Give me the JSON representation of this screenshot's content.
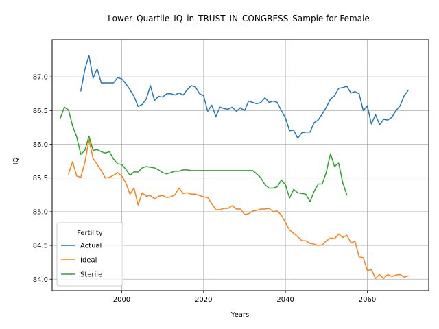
{
  "chart_data": {
    "type": "line",
    "title": "Lower_Quartile_IQ_in_TRUST_IN_CONGRESS_Sample for Female",
    "xlabel": "Years",
    "ylabel": "IQ",
    "xlim": [
      1983,
      2075
    ],
    "ylim": [
      83.83,
      87.55
    ],
    "xticks": [
      2000,
      2020,
      2040,
      2060
    ],
    "yticks": [
      84.0,
      84.5,
      85.0,
      85.5,
      86.0,
      86.5,
      87.0
    ],
    "ytick_labels": [
      "84.0",
      "84.5",
      "85.0",
      "85.5",
      "86.0",
      "86.5",
      "87.0"
    ],
    "grid": true,
    "legend": {
      "title": "Fertility",
      "position": "lower-left"
    },
    "series": [
      {
        "name": "Actual",
        "color": "#1f77b4",
        "x": [
          1990,
          1991,
          1992,
          1993,
          1994,
          1995,
          1996,
          1997,
          1998,
          1999,
          2000,
          2001,
          2002,
          2003,
          2004,
          2005,
          2006,
          2007,
          2008,
          2009,
          2010,
          2011,
          2012,
          2013,
          2014,
          2015,
          2016,
          2017,
          2018,
          2019,
          2020,
          2021,
          2022,
          2023,
          2024,
          2025,
          2026,
          2027,
          2028,
          2029,
          2030,
          2031,
          2032,
          2033,
          2034,
          2035,
          2036,
          2037,
          2038,
          2039,
          2040,
          2041,
          2042,
          2043,
          2044,
          2045,
          2046,
          2047,
          2048,
          2049,
          2050,
          2051,
          2052,
          2053,
          2054,
          2055,
          2056,
          2057,
          2058,
          2059,
          2060,
          2061,
          2062,
          2063,
          2064,
          2065,
          2066,
          2067,
          2068,
          2069,
          2070
        ],
        "y": [
          86.79,
          87.11,
          87.32,
          86.98,
          87.12,
          86.91,
          86.91,
          86.91,
          86.91,
          86.99,
          86.97,
          86.9,
          86.81,
          86.71,
          86.56,
          86.59,
          86.67,
          86.87,
          86.65,
          86.71,
          86.7,
          86.75,
          86.75,
          86.73,
          86.76,
          86.73,
          86.81,
          86.87,
          86.85,
          86.75,
          86.72,
          86.49,
          86.58,
          86.41,
          86.55,
          86.53,
          86.52,
          86.55,
          86.49,
          86.54,
          86.5,
          86.64,
          86.62,
          86.6,
          86.62,
          86.69,
          86.62,
          86.64,
          86.62,
          86.5,
          86.39,
          86.2,
          86.21,
          86.09,
          86.17,
          86.18,
          86.18,
          86.32,
          86.36,
          86.45,
          86.55,
          86.67,
          86.72,
          86.83,
          86.84,
          86.86,
          86.76,
          86.78,
          86.75,
          86.5,
          86.57,
          86.3,
          86.44,
          86.29,
          86.37,
          86.36,
          86.4,
          86.5,
          86.57,
          86.72,
          86.8
        ]
      },
      {
        "name": "Ideal",
        "color": "#ff7f0e",
        "x": [
          1987,
          1988,
          1989,
          1990,
          1991,
          1992,
          1993,
          1994,
          1995,
          1996,
          1997,
          1998,
          1999,
          2000,
          2001,
          2002,
          2003,
          2004,
          2005,
          2006,
          2007,
          2008,
          2009,
          2010,
          2011,
          2012,
          2013,
          2014,
          2015,
          2016,
          2017,
          2018,
          2019,
          2020,
          2021,
          2022,
          2023,
          2024,
          2025,
          2026,
          2027,
          2028,
          2029,
          2030,
          2031,
          2032,
          2033,
          2034,
          2035,
          2036,
          2037,
          2038,
          2039,
          2040,
          2041,
          2042,
          2043,
          2044,
          2045,
          2046,
          2047,
          2048,
          2049,
          2050,
          2051,
          2052,
          2053,
          2054,
          2055,
          2056,
          2057,
          2058,
          2059,
          2060,
          2061,
          2062,
          2063,
          2064,
          2065,
          2066,
          2067,
          2068,
          2069,
          2070
        ],
        "y": [
          85.56,
          85.74,
          85.53,
          85.51,
          85.73,
          86.07,
          85.79,
          85.7,
          85.61,
          85.5,
          85.51,
          85.54,
          85.58,
          85.53,
          85.43,
          85.26,
          85.35,
          85.1,
          85.28,
          85.23,
          85.24,
          85.19,
          85.23,
          85.24,
          85.21,
          85.22,
          85.25,
          85.35,
          85.27,
          85.28,
          85.26,
          85.26,
          85.24,
          85.22,
          85.21,
          85.12,
          85.03,
          85.03,
          85.05,
          85.05,
          85.09,
          85.04,
          85.04,
          84.96,
          84.97,
          85.01,
          85.02,
          85.04,
          85.04,
          85.05,
          85.0,
          85.01,
          84.95,
          84.84,
          84.73,
          84.68,
          84.63,
          84.57,
          84.57,
          84.53,
          84.52,
          84.5,
          84.51,
          84.57,
          84.61,
          84.6,
          84.67,
          84.62,
          84.65,
          84.54,
          84.56,
          84.33,
          84.32,
          84.13,
          84.14,
          84.01,
          84.07,
          84.01,
          84.07,
          84.04,
          84.06,
          84.07,
          84.03,
          84.05
        ]
      },
      {
        "name": "Sterile",
        "color": "#2ca02c",
        "x": [
          1985,
          1986,
          1987,
          1988,
          1989,
          1990,
          1991,
          1992,
          1993,
          1994,
          1995,
          1996,
          1997,
          1998,
          1999,
          2000,
          2001,
          2002,
          2003,
          2004,
          2005,
          2006,
          2007,
          2008,
          2009,
          2010,
          2011,
          2012,
          2013,
          2014,
          2015,
          2016,
          2017,
          2018,
          2019,
          2020,
          2021,
          2022,
          2023,
          2024,
          2025,
          2026,
          2027,
          2028,
          2029,
          2030,
          2031,
          2032,
          2033,
          2034,
          2035,
          2036,
          2037,
          2038,
          2039,
          2040,
          2041,
          2042,
          2043,
          2044,
          2045,
          2046,
          2047,
          2048,
          2049,
          2050,
          2051,
          2052,
          2053,
          2054,
          2055
        ],
        "y": [
          86.39,
          86.55,
          86.51,
          86.27,
          86.11,
          85.85,
          85.91,
          86.12,
          85.91,
          85.92,
          85.89,
          85.87,
          85.89,
          85.78,
          85.71,
          85.7,
          85.63,
          85.54,
          85.59,
          85.59,
          85.65,
          85.67,
          85.66,
          85.65,
          85.62,
          85.58,
          85.56,
          85.58,
          85.6,
          85.6,
          85.62,
          85.62,
          85.61,
          85.61,
          85.61,
          85.61,
          85.61,
          85.61,
          85.61,
          85.61,
          85.61,
          85.61,
          85.61,
          85.61,
          85.61,
          85.61,
          85.61,
          85.61,
          85.56,
          85.5,
          85.4,
          85.35,
          85.35,
          85.37,
          85.47,
          85.4,
          85.2,
          85.33,
          85.28,
          85.27,
          85.26,
          85.15,
          85.3,
          85.41,
          85.41,
          85.59,
          85.86,
          85.67,
          85.72,
          85.43,
          85.25
        ]
      }
    ]
  }
}
